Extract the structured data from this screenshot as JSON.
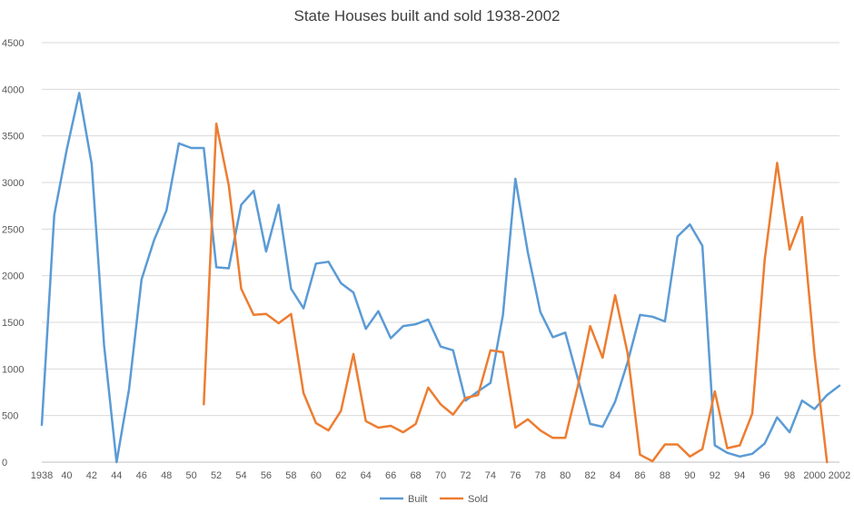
{
  "chart_data": {
    "type": "line",
    "title": "State Houses built and sold 1938-2002",
    "xlabel": "",
    "ylabel": "",
    "ylim": [
      0,
      4500
    ],
    "yticks": [
      0,
      500,
      1000,
      1500,
      2000,
      2500,
      3000,
      3500,
      4000,
      4500
    ],
    "x": [
      1938,
      1939,
      1940,
      1941,
      1942,
      1943,
      1944,
      1945,
      1946,
      1947,
      1948,
      1949,
      1950,
      1951,
      1952,
      1953,
      1954,
      1955,
      1956,
      1957,
      1958,
      1959,
      1960,
      1961,
      1962,
      1963,
      1964,
      1965,
      1966,
      1967,
      1968,
      1969,
      1970,
      1971,
      1972,
      1973,
      1974,
      1975,
      1976,
      1977,
      1978,
      1979,
      1980,
      1981,
      1982,
      1983,
      1984,
      1985,
      1986,
      1987,
      1988,
      1989,
      1990,
      1991,
      1992,
      1993,
      1994,
      1995,
      1996,
      1997,
      1998,
      1999,
      2000,
      2001,
      2002
    ],
    "xtick_values": [
      1938,
      1940,
      1942,
      1944,
      1946,
      1948,
      1950,
      1952,
      1954,
      1956,
      1958,
      1960,
      1962,
      1964,
      1966,
      1968,
      1970,
      1972,
      1974,
      1976,
      1978,
      1980,
      1982,
      1984,
      1986,
      1988,
      1990,
      1992,
      1994,
      1996,
      1998,
      2000,
      2002
    ],
    "xtick_labels": [
      "1938",
      "40",
      "42",
      "44",
      "46",
      "48",
      "50",
      "52",
      "54",
      "56",
      "58",
      "60",
      "62",
      "64",
      "66",
      "68",
      "70",
      "72",
      "74",
      "76",
      "78",
      "80",
      "82",
      "84",
      "86",
      "88",
      "90",
      "92",
      "94",
      "96",
      "98",
      "2000",
      "2002"
    ],
    "grid": true,
    "legend": "bottom",
    "series": [
      {
        "name": "Built",
        "color": "#5B9BD5",
        "values": [
          400,
          2650,
          3350,
          3960,
          3200,
          1250,
          0,
          780,
          1960,
          2380,
          2700,
          3420,
          3370,
          3370,
          2090,
          2080,
          2760,
          2910,
          2260,
          2760,
          1860,
          1650,
          2130,
          2150,
          1920,
          1820,
          1430,
          1620,
          1330,
          1460,
          1480,
          1530,
          1240,
          1200,
          660,
          760,
          850,
          1580,
          3040,
          2250,
          1610,
          1340,
          1390,
          900,
          410,
          380,
          650,
          1070,
          1580,
          1560,
          1510,
          2420,
          2550,
          2320,
          180,
          100,
          60,
          90,
          200,
          480,
          320,
          660,
          570,
          720,
          820
        ]
      },
      {
        "name": "Sold",
        "color": "#ED7D31",
        "values": [
          null,
          null,
          null,
          null,
          null,
          null,
          null,
          null,
          null,
          null,
          null,
          null,
          null,
          620,
          3630,
          2970,
          1860,
          1580,
          1590,
          1490,
          1590,
          740,
          420,
          340,
          550,
          1160,
          440,
          370,
          390,
          320,
          410,
          800,
          620,
          510,
          690,
          720,
          1200,
          1180,
          370,
          460,
          340,
          260,
          260,
          810,
          1460,
          1120,
          1790,
          1170,
          80,
          10,
          190,
          190,
          60,
          140,
          760,
          150,
          180,
          520,
          2170,
          3210,
          2280,
          2630,
          1150,
          0,
          null
        ]
      }
    ]
  }
}
